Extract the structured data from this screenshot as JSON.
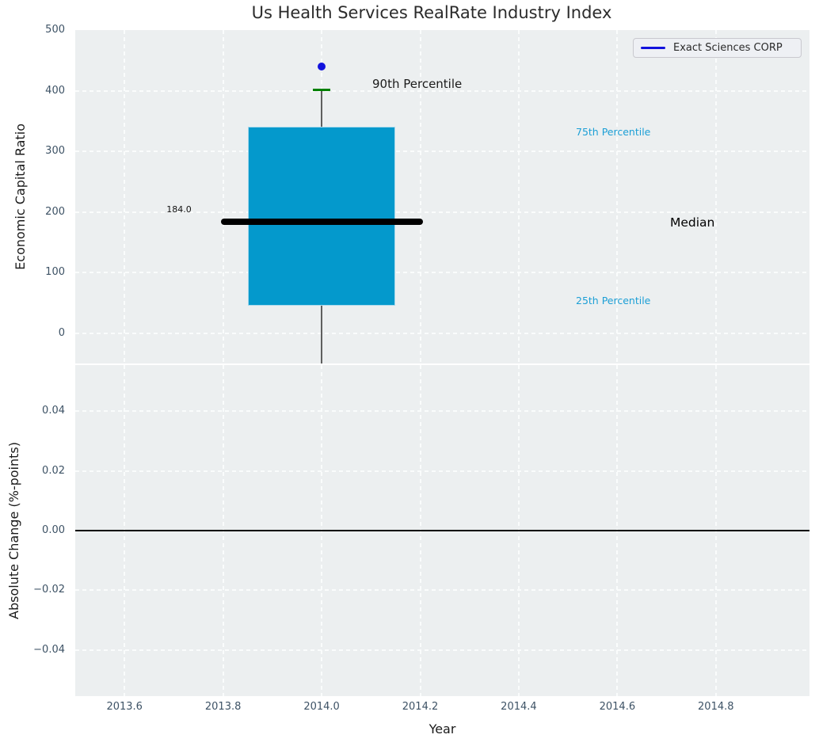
{
  "title": "Us Health Services RealRate Industry Index",
  "legend": {
    "label": "Exact Sciences CORP"
  },
  "annotations": {
    "median_value": "184.0",
    "p90": "90th Percentile",
    "p75": "75th Percentile",
    "median": "Median",
    "p25": "25th Percentile"
  },
  "colors": {
    "box_fill": "#0499cc",
    "box_edge": "#a9d9ec",
    "median_line": "#000000",
    "p90_cap": "#008000",
    "whisker": "#5f5f5f",
    "company_point": "#1212dd",
    "legend_line": "#1212dd",
    "percentile_label": "#1c9fd6",
    "zero_line": "#000000",
    "axes_background": "#eceff0",
    "grid": "#fafcfc",
    "tick_label": "#3d5265",
    "text": "#1a1a1a"
  },
  "chart_data": {
    "type": "box",
    "title": "Us Health Services RealRate Industry Index",
    "xlabel": "Year",
    "xlim": [
      2013.5,
      2014.99
    ],
    "xticks": [
      {
        "v": 2013.6,
        "label": "2013.6"
      },
      {
        "v": 2013.8,
        "label": "2013.8"
      },
      {
        "v": 2014.0,
        "label": "2014.0"
      },
      {
        "v": 2014.2,
        "label": "2014.2"
      },
      {
        "v": 2014.4,
        "label": "2014.4"
      },
      {
        "v": 2014.6,
        "label": "2014.6"
      },
      {
        "v": 2014.8,
        "label": "2014.8"
      }
    ],
    "grid": "white dashed on light gray background",
    "legend_position": "upper right",
    "panels": [
      {
        "name": "economic-capital-ratio",
        "ylabel": "Economic Capital Ratio",
        "ylim": [
          -50,
          500
        ],
        "yticks": [
          {
            "v": 0,
            "label": "0"
          },
          {
            "v": 100,
            "label": "100"
          },
          {
            "v": 200,
            "label": "200"
          },
          {
            "v": 300,
            "label": "300"
          },
          {
            "v": 400,
            "label": "400"
          },
          {
            "v": 500,
            "label": "500"
          }
        ],
        "box": {
          "x": 2014.0,
          "box_width": 0.3,
          "q1": 45,
          "median": 184,
          "q3": 340,
          "p90": 401,
          "median_line_width": 0.41,
          "median_label": "184.0",
          "whisker_clipped_below_axis": true
        },
        "series": [
          {
            "name": "Exact Sciences CORP",
            "x": 2014.0,
            "y": 440,
            "marker": "circle"
          }
        ]
      },
      {
        "name": "absolute-change",
        "ylabel": "Absolute Change (%-points)",
        "ylim": [
          -0.0555,
          0.0555
        ],
        "yticks": [
          {
            "v": 0.04,
            "label": "0.04"
          },
          {
            "v": 0.02,
            "label": "0.02"
          },
          {
            "v": 0.0,
            "label": "0.00"
          },
          {
            "v": -0.02,
            "label": "−0.02"
          },
          {
            "v": -0.04,
            "label": "−0.04"
          }
        ],
        "zero_line": 0.0,
        "series": []
      }
    ]
  }
}
